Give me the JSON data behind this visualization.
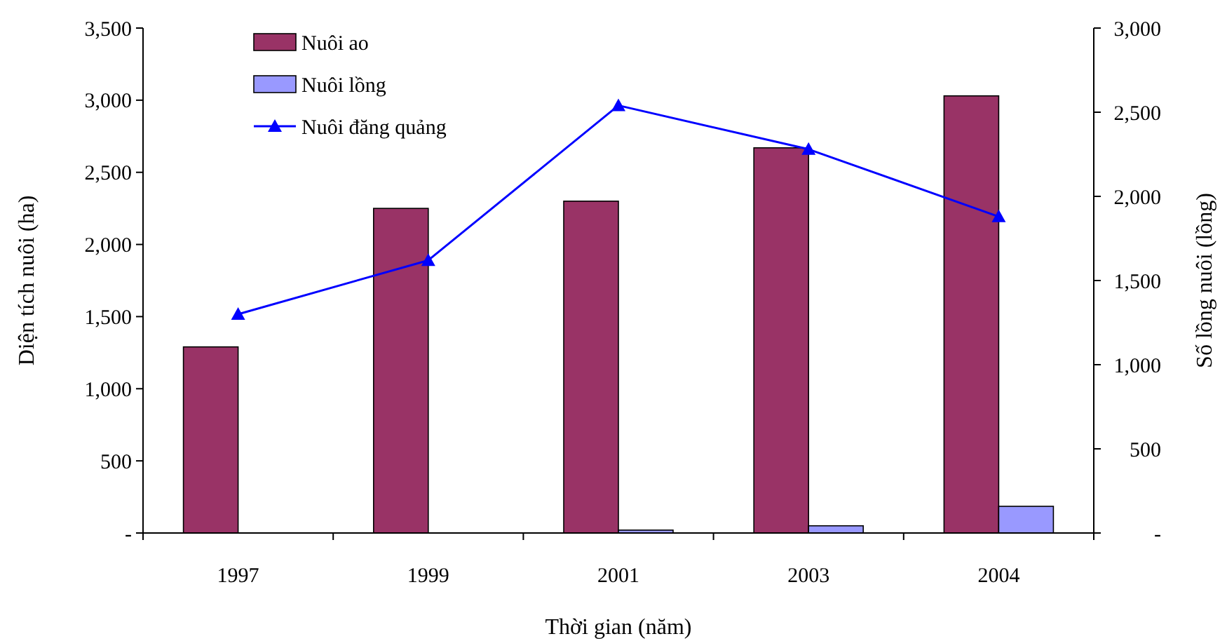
{
  "chart_data": {
    "type": "bar",
    "xlabel": "Thời gian (năm)",
    "ylabel": "Diện tích nuôi (ha)",
    "y2label": "Số lồng nuôi (lồng)",
    "categories": [
      "1997",
      "1999",
      "2001",
      "2003",
      "2004"
    ],
    "series": [
      {
        "name": "Nuôi ao",
        "color": "#993366",
        "values": [
          1290,
          2250,
          2300,
          2670,
          3030
        ]
      },
      {
        "name": "Nuôi lồng",
        "color": "#9999ff",
        "values": [
          0,
          0,
          20,
          50,
          185
        ]
      },
      {
        "name": "Nuôi đăng quảng",
        "type": "line",
        "axis": "y2",
        "color": "#0000ff",
        "marker": "triangle",
        "values": [
          1300,
          1620,
          2540,
          2280,
          1880
        ]
      }
    ],
    "ylim": [
      0,
      3500
    ],
    "yticks": [
      {
        "value": 0,
        "label": "-"
      },
      {
        "value": 500,
        "label": "500"
      },
      {
        "value": 1000,
        "label": "1,000"
      },
      {
        "value": 1500,
        "label": "1,500"
      },
      {
        "value": 2000,
        "label": "2,000"
      },
      {
        "value": 2500,
        "label": "2,500"
      },
      {
        "value": 3000,
        "label": "3,000"
      },
      {
        "value": 3500,
        "label": "3,500"
      }
    ],
    "y2lim": [
      0,
      3000
    ],
    "y2ticks": [
      {
        "value": 0,
        "label": "-"
      },
      {
        "value": 500,
        "label": "500"
      },
      {
        "value": 1000,
        "label": "1,000"
      },
      {
        "value": 1500,
        "label": "1,500"
      },
      {
        "value": 2000,
        "label": "2,000"
      },
      {
        "value": 2500,
        "label": "2,500"
      },
      {
        "value": 3000,
        "label": "3,000"
      }
    ],
    "legend": "top left",
    "grid": false
  }
}
